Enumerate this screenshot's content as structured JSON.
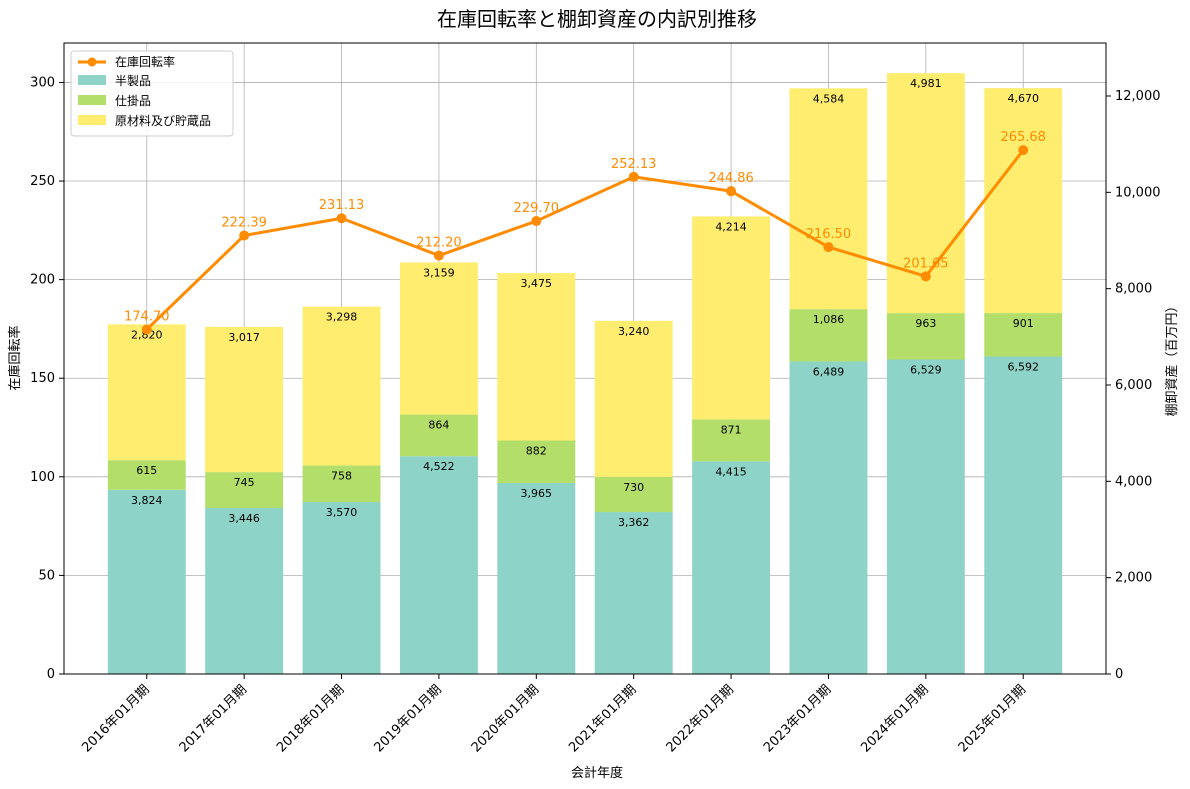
{
  "chart_data": {
    "type": "bar",
    "stacked": true,
    "title": "在庫回転率と棚卸資産の内訳別推移",
    "xlabel": "会計年度",
    "ylabel_left": "在庫回転率",
    "ylabel_right": "棚卸資産（百万円）",
    "ylim_left": [
      0,
      320
    ],
    "ylim_right": [
      0,
      13100
    ],
    "yticks_left": [
      "0",
      "50",
      "100",
      "150",
      "200",
      "250",
      "300"
    ],
    "yticks_right": [
      "0",
      "2,000",
      "4,000",
      "6,000",
      "8,000",
      "10,000",
      "12,000"
    ],
    "grid": true,
    "legend_position": "top-left",
    "categories": [
      "2016年01月期",
      "2017年01月期",
      "2018年01月期",
      "2019年01月期",
      "2020年01月期",
      "2021年01月期",
      "2022年01月期",
      "2023年01月期",
      "2024年01月期",
      "2025年01月期"
    ],
    "series": [
      {
        "name": "半製品",
        "axis": "right",
        "color": "#8dd3c7",
        "values": [
          3824,
          3446,
          3570,
          4522,
          3965,
          3362,
          4415,
          6489,
          6529,
          6592
        ],
        "labels": [
          "3,824",
          "3,446",
          "3,570",
          "4,522",
          "3,965",
          "3,362",
          "4,415",
          "6,489",
          "6,529",
          "6,592"
        ]
      },
      {
        "name": "仕掛品",
        "axis": "right",
        "color": "#b3de69",
        "values": [
          615,
          745,
          758,
          864,
          882,
          730,
          871,
          1086,
          963,
          901
        ],
        "labels": [
          "615",
          "745",
          "758",
          "864",
          "882",
          "730",
          "871",
          "1,086",
          "963",
          "901"
        ]
      },
      {
        "name": "原材料及び貯蔵品",
        "axis": "right",
        "color": "#ffed6f",
        "values": [
          2820,
          3017,
          3298,
          3159,
          3475,
          3240,
          4214,
          4584,
          4981,
          4670
        ],
        "labels": [
          "2,820",
          "3,017",
          "3,298",
          "3,159",
          "3,475",
          "3,240",
          "4,214",
          "4,584",
          "4,981",
          "4,670"
        ]
      }
    ],
    "line": {
      "name": "在庫回転率",
      "axis": "left",
      "color": "#ff8c00",
      "values": [
        174.7,
        222.39,
        231.13,
        212.2,
        229.7,
        252.13,
        244.86,
        216.5,
        201.65,
        265.68
      ],
      "labels": [
        "174.70",
        "222.39",
        "231.13",
        "212.20",
        "229.70",
        "252.13",
        "244.86",
        "216.50",
        "201.65",
        "265.68"
      ]
    }
  }
}
